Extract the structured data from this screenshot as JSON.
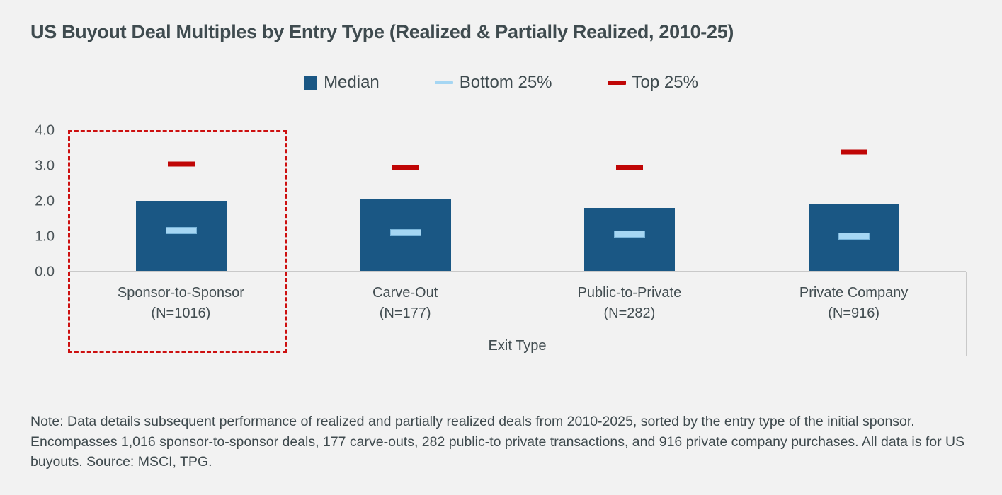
{
  "page": {
    "background": "#f2f2f2",
    "text_color": "#3f4a4e",
    "axis_line_color": "#c9c9c9"
  },
  "chart_data": {
    "type": "bar",
    "title": "US Buyout Deal Multiples by Entry Type (Realized & Partially Realized, 2010-25)",
    "categories": [
      "Sponsor-to-Sponsor",
      "Carve-Out",
      "Public-to-Private",
      "Private Company"
    ],
    "category_counts": [
      "(N=1016)",
      "(N=177)",
      "(N=282)",
      "(N=916)"
    ],
    "xlabel": "Exit Type",
    "ylabel": "",
    "ylim": [
      0,
      4
    ],
    "yticks": [
      "4.0",
      "3.0",
      "2.0",
      "1.0",
      "0.0"
    ],
    "ytick_values": [
      4,
      3,
      2,
      1,
      0
    ],
    "grid": false,
    "legend_position": "top-center",
    "series": [
      {
        "name": "Median",
        "marker": "square",
        "color": "#1a5784",
        "values": [
          2.0,
          2.05,
          1.8,
          1.9
        ]
      },
      {
        "name": "Bottom 25%",
        "marker": "dash",
        "color": "#a5d6f3",
        "values": [
          1.15,
          1.1,
          1.05,
          1.0
        ]
      },
      {
        "name": "Top 25%",
        "marker": "dash",
        "color": "#c00606",
        "values": [
          3.05,
          2.95,
          2.95,
          3.4
        ]
      }
    ],
    "highlight_box": {
      "category": "Sponsor-to-Sponsor",
      "style": "dashed",
      "color": "#cd1010"
    }
  },
  "note": {
    "text": "Note: Data details subsequent performance of realized and partially realized deals from 2010-2025, sorted by the entry type of the initial sponsor. Encompasses 1,016 sponsor-to-sponsor deals, 177 carve-outs, 282 public-to private transactions, and 916 private company purchases. All data is for US buyouts. Source: MSCI, TPG."
  }
}
